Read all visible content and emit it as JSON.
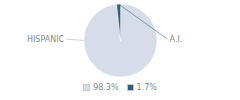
{
  "chart_data": {
    "type": "pie",
    "categories": [
      "HISPANIC",
      "A.I."
    ],
    "values": [
      98.3,
      1.7
    ],
    "value_labels": [
      "98.3%",
      "1.7%"
    ],
    "colors": [
      "#d6dde8",
      "#2e5f7a"
    ],
    "legend": "bottom"
  }
}
